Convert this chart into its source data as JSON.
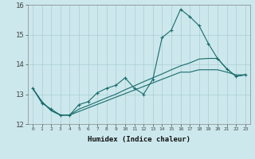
{
  "xlabel": "Humidex (Indice chaleur)",
  "ylabel": "",
  "bg_color": "#cce8ec",
  "grid_color": "#aacdd4",
  "line_color": "#1a6b6b",
  "xlim": [
    -0.5,
    23.5
  ],
  "ylim": [
    12,
    16
  ],
  "yticks": [
    12,
    13,
    14,
    15,
    16
  ],
  "xticks": [
    0,
    1,
    2,
    3,
    4,
    5,
    6,
    7,
    8,
    9,
    10,
    11,
    12,
    13,
    14,
    15,
    16,
    17,
    18,
    19,
    20,
    21,
    22,
    23
  ],
  "series": [
    {
      "x": [
        0,
        1,
        2,
        3,
        4,
        5,
        6,
        7,
        8,
        9,
        10,
        11,
        12,
        13,
        14,
        15,
        16,
        17,
        18,
        19,
        20,
        21,
        22,
        23
      ],
      "y": [
        13.2,
        12.7,
        12.5,
        12.3,
        12.3,
        12.65,
        12.75,
        13.05,
        13.2,
        13.3,
        13.55,
        13.2,
        13.0,
        13.5,
        14.9,
        15.15,
        15.85,
        15.6,
        15.3,
        14.7,
        14.2,
        13.85,
        13.6,
        13.65
      ],
      "marker": "+"
    },
    {
      "x": [
        0,
        1,
        2,
        3,
        4,
        5,
        6,
        7,
        8,
        9,
        10,
        11,
        12,
        13,
        14,
        15,
        16,
        17,
        18,
        19,
        20,
        21,
        22,
        23
      ],
      "y": [
        13.2,
        12.75,
        12.45,
        12.3,
        12.3,
        12.5,
        12.62,
        12.75,
        12.88,
        13.0,
        13.15,
        13.28,
        13.42,
        13.55,
        13.68,
        13.82,
        13.95,
        14.05,
        14.18,
        14.2,
        14.2,
        13.85,
        13.6,
        13.65
      ],
      "marker": null
    },
    {
      "x": [
        0,
        1,
        2,
        3,
        4,
        5,
        6,
        7,
        8,
        9,
        10,
        11,
        12,
        13,
        14,
        15,
        16,
        17,
        18,
        19,
        20,
        21,
        22,
        23
      ],
      "y": [
        13.2,
        12.75,
        12.45,
        12.3,
        12.3,
        12.42,
        12.54,
        12.66,
        12.78,
        12.9,
        13.02,
        13.14,
        13.26,
        13.38,
        13.5,
        13.62,
        13.74,
        13.74,
        13.82,
        13.82,
        13.82,
        13.74,
        13.65,
        13.65
      ],
      "marker": null
    }
  ]
}
